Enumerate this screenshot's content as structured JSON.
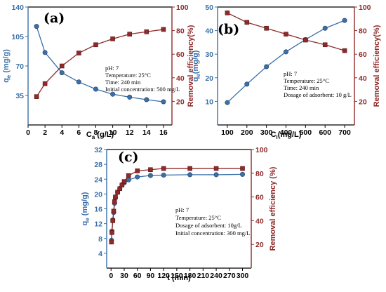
{
  "colors": {
    "blue": "#3b6fa8",
    "red": "#8e2a2a",
    "axis": "#000000"
  },
  "chart_data": [
    {
      "id": "a",
      "type": "line",
      "panel_label": "(a)",
      "annotations": [
        "pH: 7",
        "Temperature: 25°C",
        "Time: 240 min",
        "Initial concentration: 500 mg/L"
      ],
      "xlabel": "C",
      "xlabel_sub": "a",
      "xlabel_tail": " (g/L)",
      "ylabel_left": "q",
      "ylabel_left_sub": "e",
      "ylabel_left_tail": " (mg/g)",
      "ylabel_right": "Removal efficiency(%)",
      "xlim": [
        0,
        17
      ],
      "ylim_left": [
        0,
        140
      ],
      "ylim_right": [
        0,
        100
      ],
      "xticks": [
        0,
        2,
        4,
        6,
        8,
        10,
        12,
        14,
        16
      ],
      "yticks_left": [
        35,
        70,
        105,
        140
      ],
      "yticks_right": [
        20,
        40,
        60,
        80,
        100
      ],
      "series": [
        {
          "axis": "left",
          "color": "blue",
          "marker": "circle",
          "x": [
            1,
            2,
            4,
            6,
            8,
            10,
            12,
            14,
            16
          ],
          "y": [
            117,
            86,
            62,
            51,
            42.5,
            36.5,
            33,
            30,
            27.5
          ]
        },
        {
          "axis": "right",
          "color": "red",
          "marker": "square",
          "x": [
            1,
            2,
            4,
            6,
            8,
            10,
            12,
            14,
            16
          ],
          "y": [
            24,
            35,
            50,
            61,
            68,
            73,
            77,
            79,
            81
          ]
        }
      ]
    },
    {
      "id": "b",
      "type": "line",
      "panel_label": "(b)",
      "annotations": [
        "pH: 7",
        "Temperature: 25°C",
        "Time: 240 min",
        "Dosage of adsorbent: 10 g/L"
      ],
      "xlabel": "C",
      "xlabel_sub": "i",
      "xlabel_tail": "(mg/L)",
      "ylabel_left": "q",
      "ylabel_left_sub": "e",
      "ylabel_left_tail": "(mg/g)",
      "ylabel_right": "Removal efficiency(%)",
      "xlim": [
        50,
        750
      ],
      "ylim_left": [
        0,
        50
      ],
      "ylim_right": [
        0,
        100
      ],
      "xticks": [
        100,
        200,
        300,
        400,
        500,
        600,
        700
      ],
      "yticks_left": [
        10,
        20,
        30,
        40,
        50
      ],
      "yticks_right": [
        20,
        40,
        60,
        80,
        100
      ],
      "series": [
        {
          "axis": "left",
          "color": "blue",
          "marker": "circle",
          "x": [
            100,
            200,
            300,
            400,
            500,
            600,
            700
          ],
          "y": [
            9.5,
            17.3,
            24.7,
            31,
            36.2,
            41,
            44.3
          ]
        },
        {
          "axis": "right",
          "color": "red",
          "marker": "square",
          "x": [
            100,
            200,
            300,
            400,
            500,
            600,
            700
          ],
          "y": [
            95,
            87,
            82,
            77,
            72,
            68,
            63
          ]
        }
      ]
    },
    {
      "id": "c",
      "type": "line",
      "panel_label": "(c)",
      "annotations": [
        "pH: 7",
        "Temperature: 25°C",
        "Dosage of adsorbent: 10g/L",
        "Initial concentration: 300 mg/L"
      ],
      "xlabel": "t (min)",
      "xlabel_sub": "",
      "xlabel_tail": "",
      "ylabel_left": "q",
      "ylabel_left_sub": "e",
      "ylabel_left_tail": " (mg/g)",
      "ylabel_right": "Removal efficiency (%)",
      "xlim": [
        -10,
        320
      ],
      "ylim_left": [
        0,
        32
      ],
      "ylim_right": [
        0,
        100
      ],
      "xticks": [
        0,
        30,
        60,
        90,
        120,
        150,
        180,
        210,
        240,
        270,
        300
      ],
      "yticks_left": [
        4,
        8,
        12,
        16,
        20,
        24,
        28,
        32
      ],
      "yticks_right": [
        20,
        40,
        60,
        80,
        100
      ],
      "series": [
        {
          "axis": "left",
          "color": "blue",
          "marker": "circle",
          "x": [
            1,
            2,
            4,
            6,
            8,
            10,
            15,
            20,
            25,
            30,
            40,
            60,
            90,
            120,
            180,
            240,
            300
          ],
          "y": [
            7.5,
            10,
            13,
            15,
            17.5,
            19,
            20.5,
            21.5,
            22.5,
            23,
            23.8,
            24.6,
            25,
            25.1,
            25.2,
            25.2,
            25.3
          ]
        },
        {
          "axis": "right",
          "color": "red",
          "marker": "square",
          "x": [
            1,
            2,
            4,
            6,
            8,
            10,
            15,
            20,
            25,
            30,
            40,
            60,
            90,
            120,
            180,
            240,
            300
          ],
          "y": [
            22,
            30,
            40,
            48,
            56,
            60,
            64,
            67,
            70,
            73,
            78,
            82,
            83,
            84,
            84,
            84,
            84
          ]
        }
      ]
    }
  ]
}
